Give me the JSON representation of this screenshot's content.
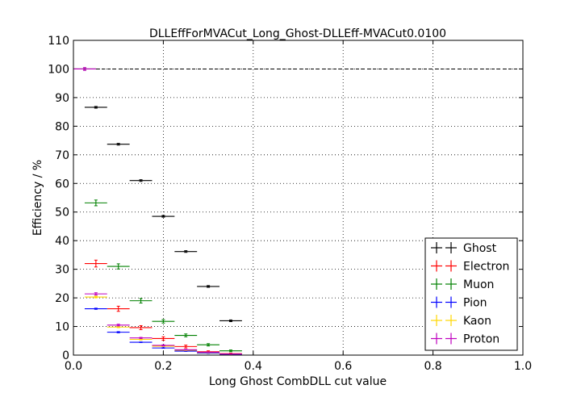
{
  "chart_data": {
    "type": "scatter",
    "title": "DLLEffForMVACut_Long_Ghost-DLLEff-MVACut0.0100",
    "xlabel": "Long Ghost CombDLL cut value",
    "ylabel": "Efficiency / %",
    "xlim": [
      0.0,
      1.0
    ],
    "ylim": [
      0,
      110
    ],
    "x_ticks": [
      "0.0",
      "0.2",
      "0.4",
      "0.6",
      "0.8",
      "1.0"
    ],
    "y_ticks": [
      "0",
      "10",
      "20",
      "30",
      "40",
      "50",
      "60",
      "70",
      "80",
      "90",
      "100",
      "110"
    ],
    "grid": true,
    "legend_position": "lower-right",
    "reference_line": {
      "y": 100,
      "style": "dashed"
    },
    "series": [
      {
        "name": "Ghost",
        "color": "#000000",
        "xerr": 0.025,
        "points": [
          {
            "x": 0.025,
            "y": 100,
            "yerr": 0.1
          },
          {
            "x": 0.05,
            "y": 86.6,
            "yerr": 0.3
          },
          {
            "x": 0.1,
            "y": 73.7,
            "yerr": 0.3
          },
          {
            "x": 0.15,
            "y": 61.0,
            "yerr": 0.3
          },
          {
            "x": 0.2,
            "y": 48.5,
            "yerr": 0.3
          },
          {
            "x": 0.25,
            "y": 36.2,
            "yerr": 0.3
          },
          {
            "x": 0.3,
            "y": 24.0,
            "yerr": 0.3
          },
          {
            "x": 0.35,
            "y": 12.0,
            "yerr": 0.3
          }
        ]
      },
      {
        "name": "Electron",
        "color": "#ff0000",
        "xerr": 0.025,
        "points": [
          {
            "x": 0.05,
            "y": 32.0,
            "yerr": 1.2
          },
          {
            "x": 0.1,
            "y": 16.2,
            "yerr": 0.9
          },
          {
            "x": 0.15,
            "y": 9.6,
            "yerr": 0.7
          },
          {
            "x": 0.2,
            "y": 5.8,
            "yerr": 0.6
          },
          {
            "x": 0.25,
            "y": 3.0,
            "yerr": 0.5
          },
          {
            "x": 0.3,
            "y": 1.2,
            "yerr": 0.3
          },
          {
            "x": 0.35,
            "y": 0.5,
            "yerr": 0.2
          }
        ]
      },
      {
        "name": "Muon",
        "color": "#008000",
        "xerr": 0.025,
        "points": [
          {
            "x": 0.05,
            "y": 53.2,
            "yerr": 1.0
          },
          {
            "x": 0.1,
            "y": 31.0,
            "yerr": 0.9
          },
          {
            "x": 0.15,
            "y": 19.0,
            "yerr": 0.8
          },
          {
            "x": 0.2,
            "y": 11.8,
            "yerr": 0.6
          },
          {
            "x": 0.25,
            "y": 6.9,
            "yerr": 0.5
          },
          {
            "x": 0.3,
            "y": 3.6,
            "yerr": 0.4
          },
          {
            "x": 0.35,
            "y": 1.5,
            "yerr": 0.3
          }
        ]
      },
      {
        "name": "Pion",
        "color": "#0000ff",
        "xerr": 0.025,
        "points": [
          {
            "x": 0.05,
            "y": 16.2,
            "yerr": 0.2
          },
          {
            "x": 0.1,
            "y": 8.0,
            "yerr": 0.2
          },
          {
            "x": 0.15,
            "y": 4.5,
            "yerr": 0.1
          },
          {
            "x": 0.2,
            "y": 2.5,
            "yerr": 0.1
          },
          {
            "x": 0.25,
            "y": 1.4,
            "yerr": 0.1
          },
          {
            "x": 0.3,
            "y": 0.7,
            "yerr": 0.1
          },
          {
            "x": 0.35,
            "y": 0.3,
            "yerr": 0.1
          }
        ]
      },
      {
        "name": "Kaon",
        "color": "#ffd700",
        "xerr": 0.025,
        "points": [
          {
            "x": 0.05,
            "y": 20.3,
            "yerr": 0.3
          },
          {
            "x": 0.1,
            "y": 9.8,
            "yerr": 0.2
          },
          {
            "x": 0.15,
            "y": 5.5,
            "yerr": 0.2
          },
          {
            "x": 0.2,
            "y": 3.1,
            "yerr": 0.1
          },
          {
            "x": 0.25,
            "y": 1.7,
            "yerr": 0.1
          },
          {
            "x": 0.3,
            "y": 0.9,
            "yerr": 0.1
          },
          {
            "x": 0.35,
            "y": 0.4,
            "yerr": 0.1
          }
        ]
      },
      {
        "name": "Proton",
        "color": "#bf00bf",
        "xerr": 0.025,
        "points": [
          {
            "x": 0.025,
            "y": 100,
            "yerr": 0.5
          },
          {
            "x": 0.05,
            "y": 21.4,
            "yerr": 0.4
          },
          {
            "x": 0.1,
            "y": 10.5,
            "yerr": 0.3
          },
          {
            "x": 0.15,
            "y": 6.0,
            "yerr": 0.2
          },
          {
            "x": 0.2,
            "y": 3.4,
            "yerr": 0.2
          },
          {
            "x": 0.25,
            "y": 1.9,
            "yerr": 0.1
          },
          {
            "x": 0.3,
            "y": 1.0,
            "yerr": 0.1
          },
          {
            "x": 0.35,
            "y": 0.4,
            "yerr": 0.1
          }
        ]
      }
    ]
  }
}
